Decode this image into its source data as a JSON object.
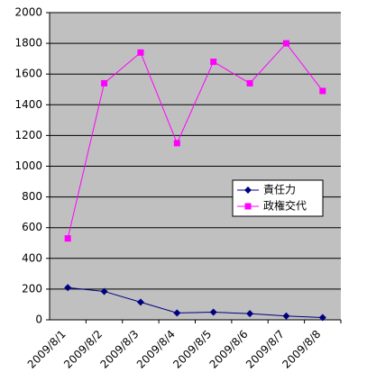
{
  "chart_data": {
    "type": "line",
    "categories": [
      "2009/8/1",
      "2009/8/2",
      "2009/8/3",
      "2009/8/4",
      "2009/8/5",
      "2009/8/6",
      "2009/8/7",
      "2009/8/8"
    ],
    "series": [
      {
        "name": "責任力",
        "color": "#000080",
        "marker": "diamond",
        "values": [
          210,
          185,
          115,
          45,
          50,
          40,
          25,
          15
        ]
      },
      {
        "name": "政権交代",
        "color": "#ff00ff",
        "marker": "square",
        "values": [
          530,
          1540,
          1740,
          1150,
          1680,
          1540,
          1800,
          1490
        ]
      }
    ],
    "ylim": [
      0,
      2000
    ],
    "yticks": [
      0,
      200,
      400,
      600,
      800,
      1000,
      1200,
      1400,
      1600,
      1800,
      2000
    ],
    "grid": true
  }
}
